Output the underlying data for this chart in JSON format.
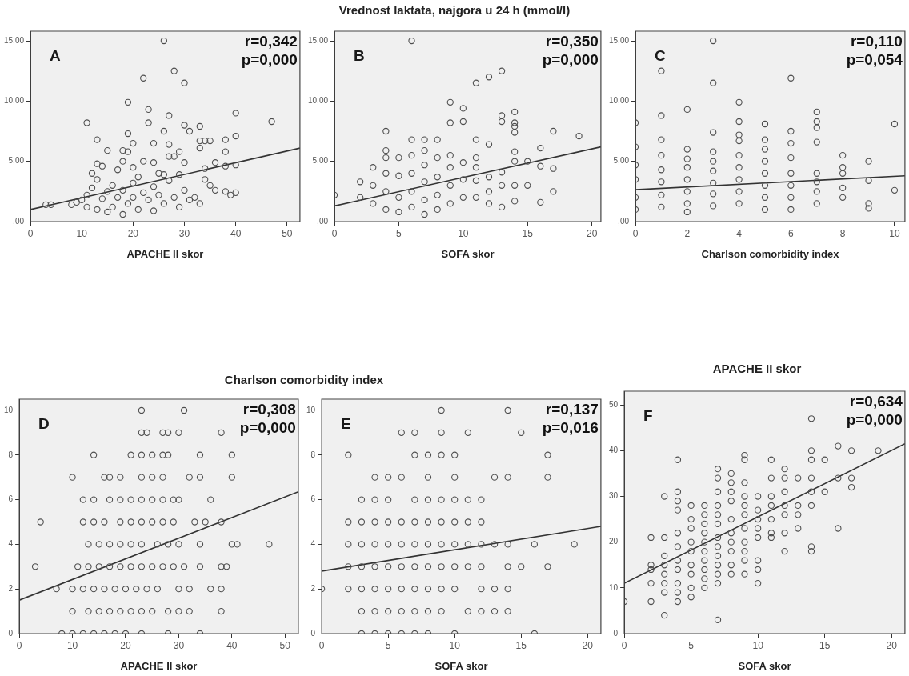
{
  "chart_data": [
    {
      "type": "scatter",
      "xlabel": "APACHE II skor",
      "marker": "circle",
      "annotations": [
        "A",
        "r=0,342",
        "p=0,000"
      ],
      "xlim": [
        0,
        52.5
      ],
      "xticks": [
        0,
        10,
        20,
        30,
        40,
        50
      ],
      "ylim": [
        0,
        15.8
      ],
      "yticks": [
        {
          "value": 0,
          "label": ",00"
        },
        {
          "value": 5,
          "label": "5,00"
        },
        {
          "value": 10,
          "label": "10,00"
        },
        {
          "value": 15,
          "label": "15,00"
        }
      ],
      "series": [
        {
          "color": "#4d4d4d",
          "x": [
            26,
            28,
            22,
            30,
            19,
            23,
            27,
            40,
            11,
            23,
            30,
            33,
            31,
            26,
            19,
            40,
            13,
            20,
            24,
            27,
            33,
            34,
            35,
            38,
            47,
            15,
            18,
            19,
            29,
            33,
            38,
            13,
            14,
            18,
            22,
            24,
            27,
            28,
            30,
            36,
            38,
            40,
            12,
            17,
            20,
            25,
            29,
            34,
            34,
            35,
            38,
            39,
            40,
            8,
            4,
            3,
            10,
            11,
            12,
            13,
            14,
            15,
            16,
            16,
            17,
            18,
            19,
            20,
            20,
            21,
            22,
            23,
            24,
            25,
            26,
            27,
            28,
            29,
            30,
            31,
            32,
            33,
            15,
            18,
            24,
            11,
            9,
            13,
            21,
            26,
            36
          ],
          "values": [
            15,
            12.5,
            11.9,
            11.5,
            9.9,
            9.3,
            8.8,
            9,
            8.2,
            8.2,
            8,
            7.9,
            7.5,
            7.5,
            7.3,
            7.1,
            6.8,
            6.5,
            6.5,
            6.4,
            6.7,
            6.7,
            6.7,
            6.8,
            8.3,
            5.9,
            5.9,
            5.8,
            5.8,
            6.1,
            5.8,
            4.8,
            4.6,
            5,
            5,
            4.9,
            5.4,
            5.4,
            4.9,
            4.9,
            4.6,
            4.7,
            4,
            4.3,
            4.5,
            4,
            3.9,
            4.4,
            3.5,
            3,
            2.5,
            2.2,
            2.4,
            1.4,
            1.4,
            1.4,
            1.8,
            2.2,
            2.8,
            3.5,
            1.9,
            2.5,
            3,
            1.2,
            2,
            2.6,
            1.5,
            3.2,
            2,
            1,
            2.4,
            1.8,
            2.9,
            2.2,
            1.5,
            3.4,
            2,
            1.2,
            2.6,
            1.8,
            2,
            1.5,
            0.8,
            0.6,
            0.9,
            1.2,
            1.6,
            1,
            3.7,
            3.9,
            2.6
          ]
        },
        {
          "type": "line",
          "color": "#333333",
          "x": [
            0,
            52.5
          ],
          "values": [
            1,
            6.1
          ],
          "marker": "none"
        }
      ]
    },
    {
      "type": "scatter",
      "title": "Vrednost laktata, najgora u 24 h (mmol/l)",
      "xlabel": "SOFA skor",
      "marker": "circle",
      "annotations": [
        "B",
        "r=0,350",
        "p=0,000"
      ],
      "xlim": [
        0,
        20.7
      ],
      "xticks": [
        0,
        5,
        10,
        15,
        20
      ],
      "ylim": [
        0,
        15.8
      ],
      "yticks": [
        {
          "value": 0,
          "label": ",00"
        },
        {
          "value": 5,
          "label": "5,00"
        },
        {
          "value": 10,
          "label": "10,00"
        },
        {
          "value": 15,
          "label": "15,00"
        }
      ],
      "series": [
        {
          "color": "#4d4d4d",
          "x": [
            6,
            11,
            12,
            13,
            9,
            10,
            9,
            10,
            13,
            13,
            14,
            14,
            14,
            14,
            17,
            19,
            4,
            4,
            4,
            11,
            12,
            16,
            11,
            14,
            14,
            15,
            16,
            17,
            11,
            12,
            13,
            14,
            15,
            17,
            14,
            16,
            0,
            2,
            2,
            3,
            3,
            3,
            4,
            4,
            4,
            5,
            5,
            5,
            5,
            6,
            6,
            6,
            6,
            6,
            7,
            7,
            7,
            7,
            7,
            7,
            8,
            8,
            8,
            8,
            8,
            9,
            9,
            9,
            9,
            10,
            10,
            10,
            11,
            11,
            12,
            12,
            13,
            13
          ],
          "values": [
            15,
            11.5,
            12,
            12.5,
            9.9,
            9.4,
            8.2,
            8.3,
            8.8,
            8.3,
            9.1,
            8.2,
            7.9,
            7.4,
            7.5,
            7.1,
            7.5,
            5.9,
            5.3,
            6.8,
            6.4,
            6.1,
            5.3,
            5.8,
            5,
            5,
            4.6,
            4.4,
            4.5,
            3.7,
            4.1,
            3,
            3,
            2.5,
            1.7,
            1.6,
            2.2,
            3.3,
            2,
            4.5,
            3,
            1.5,
            4,
            2.5,
            1,
            5.3,
            3.8,
            2,
            0.8,
            6.8,
            5.5,
            4,
            2.5,
            1.2,
            6.8,
            5.9,
            4.7,
            3.3,
            1.8,
            0.6,
            6.8,
            5.3,
            3.7,
            2.2,
            1,
            5.5,
            4.5,
            3,
            1.5,
            4.9,
            3.5,
            2,
            3.4,
            2,
            2.5,
            1.5,
            3,
            1.2
          ]
        },
        {
          "type": "line",
          "color": "#333333",
          "x": [
            0,
            20.7
          ],
          "values": [
            1.3,
            6.2
          ],
          "marker": "none"
        }
      ]
    },
    {
      "type": "scatter",
      "xlabel": "Charlson comorbidity index",
      "marker": "circle",
      "annotations": [
        "C",
        "r=0,110",
        "p=0,054"
      ],
      "xlim": [
        0,
        10.4
      ],
      "xticks": [
        0,
        2,
        4,
        6,
        8,
        10
      ],
      "ylim": [
        0,
        15.8
      ],
      "yticks": [
        {
          "value": 0,
          "label": ",00"
        },
        {
          "value": 5,
          "label": "5,00"
        },
        {
          "value": 10,
          "label": "10,00"
        },
        {
          "value": 15,
          "label": "15,00"
        }
      ],
      "series": [
        {
          "color": "#4d4d4d",
          "x": [
            0,
            0,
            0,
            0,
            0,
            0,
            1,
            1,
            1,
            1,
            1,
            1,
            1,
            1,
            2,
            2,
            2,
            2,
            2,
            2,
            2,
            2,
            3,
            3,
            3,
            3,
            3,
            3,
            3,
            3,
            3,
            4,
            4,
            4,
            4,
            4,
            4,
            4,
            4,
            4,
            5,
            5,
            5,
            5,
            5,
            5,
            5,
            5,
            6,
            6,
            6,
            6,
            6,
            6,
            6,
            6,
            7,
            7,
            7,
            7,
            7,
            7,
            7,
            7,
            8,
            8,
            8,
            8,
            8,
            9,
            9,
            9,
            9,
            10,
            10
          ],
          "values": [
            8.2,
            6.2,
            4.7,
            3.5,
            2,
            1,
            12.5,
            8.8,
            6.8,
            5.5,
            4.3,
            3.3,
            2.2,
            1.2,
            9.3,
            6,
            5.2,
            4.5,
            3.5,
            2.5,
            1.5,
            0.8,
            15,
            11.5,
            7.4,
            5.8,
            5,
            4.2,
            3.2,
            2.3,
            1.3,
            9.9,
            8.3,
            7.2,
            6.7,
            5.5,
            4.5,
            3.5,
            2.5,
            1.5,
            8.1,
            6.8,
            6,
            5,
            4,
            3,
            2,
            1,
            11.9,
            7.5,
            6.5,
            5.3,
            4,
            3,
            2,
            1,
            9.1,
            8.3,
            7.8,
            6.6,
            4,
            3.3,
            2.5,
            1.5,
            5.5,
            4.5,
            4,
            2.8,
            2,
            5,
            3.4,
            1.5,
            1.1,
            8.1,
            2.6
          ]
        },
        {
          "type": "line",
          "color": "#333333",
          "x": [
            0,
            10.4
          ],
          "values": [
            2.65,
            3.8
          ],
          "marker": "none"
        }
      ]
    },
    {
      "type": "scatter",
      "title": "Charlson comorbidity index",
      "xlabel": "APACHE II skor",
      "marker": "circle",
      "annotations": [
        "D",
        "r=0,308",
        "p=0,000"
      ],
      "xlim": [
        0,
        52.5
      ],
      "xticks": [
        0,
        10,
        20,
        30,
        40,
        50
      ],
      "ylim": [
        0,
        10.5
      ],
      "yticks": [
        0,
        2,
        4,
        6,
        8,
        10
      ],
      "series": [
        {
          "color": "#4d4d4d",
          "x": [
            23,
            31,
            23,
            24,
            27,
            28,
            30,
            38,
            14,
            21,
            23,
            25,
            27,
            28,
            34,
            40,
            10,
            16,
            17,
            19,
            23,
            25,
            27,
            32,
            34,
            40,
            12,
            14,
            17,
            19,
            21,
            23,
            25,
            27,
            29,
            30,
            36,
            4,
            12,
            14,
            16,
            19,
            21,
            23,
            25,
            27,
            29,
            33,
            35,
            38,
            13,
            15,
            17,
            19,
            21,
            23,
            26,
            28,
            30,
            34,
            40,
            41,
            47,
            3,
            11,
            13,
            15,
            17,
            19,
            21,
            23,
            25,
            27,
            29,
            31,
            34,
            38,
            39,
            7,
            10,
            12,
            14,
            16,
            18,
            20,
            22,
            24,
            26,
            30,
            32,
            36,
            38,
            10,
            13,
            15,
            17,
            19,
            21,
            23,
            25,
            28,
            30,
            32,
            38,
            8,
            10,
            12,
            14,
            16,
            18,
            20,
            23,
            28,
            34
          ],
          "values": [
            10,
            10,
            9,
            9,
            9,
            9,
            9,
            9,
            8,
            8,
            8,
            8,
            8,
            8,
            8,
            8,
            7,
            7,
            7,
            7,
            7,
            7,
            7,
            7,
            7,
            7,
            6,
            6,
            6,
            6,
            6,
            6,
            6,
            6,
            6,
            6,
            6,
            5,
            5,
            5,
            5,
            5,
            5,
            5,
            5,
            5,
            5,
            5,
            5,
            5,
            4,
            4,
            4,
            4,
            4,
            4,
            4,
            4,
            4,
            4,
            4,
            4,
            4,
            3,
            3,
            3,
            3,
            3,
            3,
            3,
            3,
            3,
            3,
            3,
            3,
            3,
            3,
            3,
            2,
            2,
            2,
            2,
            2,
            2,
            2,
            2,
            2,
            2,
            2,
            2,
            2,
            2,
            1,
            1,
            1,
            1,
            1,
            1,
            1,
            1,
            1,
            1,
            1,
            1,
            0,
            0,
            0,
            0,
            0,
            0,
            0,
            0,
            0,
            0
          ]
        },
        {
          "type": "line",
          "color": "#333333",
          "x": [
            0,
            52.5
          ],
          "values": [
            1.5,
            6.35
          ],
          "marker": "none"
        }
      ]
    },
    {
      "type": "scatter",
      "xlabel": "SOFA skor",
      "marker": "circle",
      "annotations": [
        "E",
        "r=0,137",
        "p=0,016"
      ],
      "xlim": [
        0,
        21
      ],
      "xticks": [
        0,
        5,
        10,
        15,
        20
      ],
      "ylim": [
        0,
        10.5
      ],
      "yticks": [
        0,
        2,
        4,
        6,
        8,
        10
      ],
      "series": [
        {
          "color": "#4d4d4d",
          "x": [
            9,
            14,
            6,
            7,
            9,
            11,
            15,
            2,
            7,
            8,
            9,
            10,
            17,
            4,
            5,
            6,
            8,
            10,
            13,
            14,
            17,
            3,
            4,
            5,
            7,
            8,
            9,
            10,
            11,
            12,
            2,
            3,
            4,
            5,
            6,
            7,
            8,
            9,
            10,
            11,
            12,
            2,
            3,
            4,
            5,
            6,
            7,
            8,
            9,
            10,
            11,
            12,
            13,
            14,
            16,
            19,
            2,
            3,
            4,
            5,
            6,
            7,
            8,
            9,
            10,
            11,
            12,
            14,
            15,
            17,
            0,
            2,
            3,
            4,
            5,
            6,
            7,
            8,
            9,
            10,
            12,
            13,
            14,
            3,
            4,
            5,
            6,
            7,
            8,
            9,
            11,
            12,
            13,
            14,
            3,
            4,
            5,
            6,
            7,
            8,
            10,
            16
          ],
          "values": [
            10,
            10,
            9,
            9,
            9,
            9,
            9,
            8,
            8,
            8,
            8,
            8,
            8,
            7,
            7,
            7,
            7,
            7,
            7,
            7,
            7,
            6,
            6,
            6,
            6,
            6,
            6,
            6,
            6,
            6,
            5,
            5,
            5,
            5,
            5,
            5,
            5,
            5,
            5,
            5,
            5,
            4,
            4,
            4,
            4,
            4,
            4,
            4,
            4,
            4,
            4,
            4,
            4,
            4,
            4,
            4,
            3,
            3,
            3,
            3,
            3,
            3,
            3,
            3,
            3,
            3,
            3,
            3,
            3,
            3,
            2,
            2,
            2,
            2,
            2,
            2,
            2,
            2,
            2,
            2,
            2,
            2,
            2,
            1,
            1,
            1,
            1,
            1,
            1,
            1,
            1,
            1,
            1,
            1,
            0,
            0,
            0,
            0,
            0,
            0,
            0,
            0
          ]
        },
        {
          "type": "line",
          "color": "#333333",
          "x": [
            0,
            21
          ],
          "values": [
            2.8,
            4.8
          ],
          "marker": "none"
        }
      ]
    },
    {
      "type": "scatter",
      "title": "APACHE II skor",
      "xlabel": "SOFA skor",
      "marker": "circle",
      "annotations": [
        "F",
        "r=0,634",
        "p=0,000"
      ],
      "xlim": [
        0,
        21
      ],
      "xticks": [
        0,
        5,
        10,
        15,
        20
      ],
      "ylim": [
        0,
        53
      ],
      "yticks": [
        0,
        10,
        20,
        30,
        40,
        50
      ],
      "series": [
        {
          "color": "#4d4d4d",
          "x": [
            0,
            2,
            2,
            2,
            2,
            2,
            3,
            3,
            3,
            3,
            3,
            3,
            3,
            3,
            4,
            4,
            4,
            4,
            4,
            4,
            4,
            4,
            4,
            4,
            4,
            5,
            5,
            5,
            5,
            5,
            5,
            5,
            5,
            5,
            6,
            6,
            6,
            6,
            6,
            6,
            6,
            6,
            6,
            6,
            7,
            7,
            7,
            7,
            7,
            7,
            7,
            7,
            7,
            7,
            7,
            7,
            7,
            8,
            8,
            8,
            8,
            8,
            8,
            8,
            8,
            8,
            8,
            9,
            9,
            9,
            9,
            9,
            9,
            9,
            9,
            9,
            9,
            9,
            10,
            10,
            10,
            10,
            10,
            10,
            10,
            10,
            11,
            11,
            11,
            11,
            11,
            11,
            11,
            12,
            12,
            12,
            12,
            12,
            12,
            12,
            13,
            13,
            13,
            13,
            14,
            14,
            14,
            14,
            14,
            14,
            14,
            14,
            15,
            15,
            16,
            16,
            16,
            17,
            17,
            17,
            19
          ],
          "values": [
            7,
            21,
            15,
            14,
            11,
            7,
            30,
            21,
            17,
            15,
            13,
            11,
            9,
            4,
            38,
            31,
            29,
            27,
            22,
            19,
            16,
            14,
            11,
            9,
            7,
            28,
            25,
            23,
            20,
            18,
            15,
            13,
            10,
            8,
            28,
            26,
            24,
            22,
            20,
            18,
            16,
            14,
            12,
            10,
            36,
            34,
            31,
            28,
            26,
            24,
            21,
            19,
            17,
            15,
            13,
            11,
            3,
            35,
            33,
            31,
            29,
            25,
            22,
            20,
            18,
            15,
            13,
            39,
            38,
            33,
            30,
            28,
            26,
            23,
            20,
            18,
            16,
            13,
            30,
            27,
            25,
            23,
            21,
            16,
            14,
            11,
            38,
            34,
            30,
            28,
            25,
            22,
            21,
            36,
            34,
            31,
            28,
            26,
            22,
            18,
            34,
            28,
            26,
            23,
            47,
            40,
            38,
            34,
            31,
            28,
            19,
            18,
            38,
            31,
            41,
            34,
            23,
            40,
            34,
            32,
            40
          ]
        },
        {
          "type": "line",
          "color": "#333333",
          "x": [
            0,
            21
          ],
          "values": [
            11,
            41.5
          ],
          "marker": "none"
        }
      ]
    }
  ]
}
